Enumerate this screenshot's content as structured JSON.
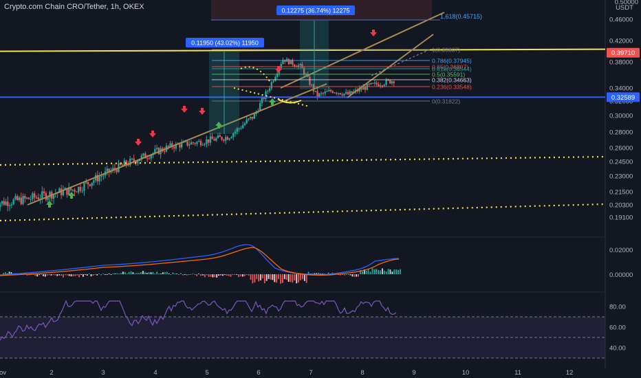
{
  "header": {
    "title": "Crypto.com Chain CRO/Tether, 1h, OKEX",
    "currency": "USDT"
  },
  "colors": {
    "background": "#131722",
    "up": "#26a69a",
    "down": "#ef5350",
    "resistance": "#f5e642",
    "support": "#2962ff",
    "trend": "#a88a4e",
    "dotted": "#f5e642",
    "macd": "#2962ff",
    "signal": "#ff6d00",
    "rsi": "#7e57c2"
  },
  "chart_data": {
    "type": "candlestick",
    "x_ticks": [
      "ov",
      "2",
      "3",
      "4",
      "5",
      "6",
      "7",
      "8",
      "9",
      "10",
      "11",
      "12"
    ],
    "price_ticks": [
      "0.46000",
      "0.42000",
      "0.38000",
      "0.34000",
      "0.32000",
      "0.30000",
      "0.28000",
      "0.26000",
      "0.24500",
      "0.23000",
      "0.21500",
      "0.20300",
      "0.19100"
    ],
    "top_tick": "0.50000",
    "price_labels": {
      "current": "0.39710",
      "support": "0.32589"
    },
    "fibonacci": [
      {
        "label": "1(0.39807)",
        "color": "#787b86"
      },
      {
        "label": "0.786(0.37945)",
        "color": "#42a5f5"
      },
      {
        "label": "0.65(0.36807)",
        "color": "#ef5350"
      },
      {
        "label": "0.618(0.36544)",
        "color": "#26a69a"
      },
      {
        "label": "0.5(0.35591)",
        "color": "#66bb6a"
      },
      {
        "label": "0.382(0.34663)",
        "color": "#d1d4dc"
      },
      {
        "label": "0.236(0.33548)",
        "color": "#ef5350"
      },
      {
        "label": "0(0.31822)",
        "color": "#787b86"
      }
    ],
    "fib_ext_label": "1.618(0.45715)",
    "measure_boxes": [
      {
        "label": "0.11950 (43.02%) 11950"
      },
      {
        "label": "0.12275 (36.74%) 12275"
      }
    ],
    "macd_ticks": [
      "0.02000",
      "0.00000"
    ],
    "rsi_ticks": [
      "80.00",
      "60.00",
      "40.00"
    ]
  }
}
